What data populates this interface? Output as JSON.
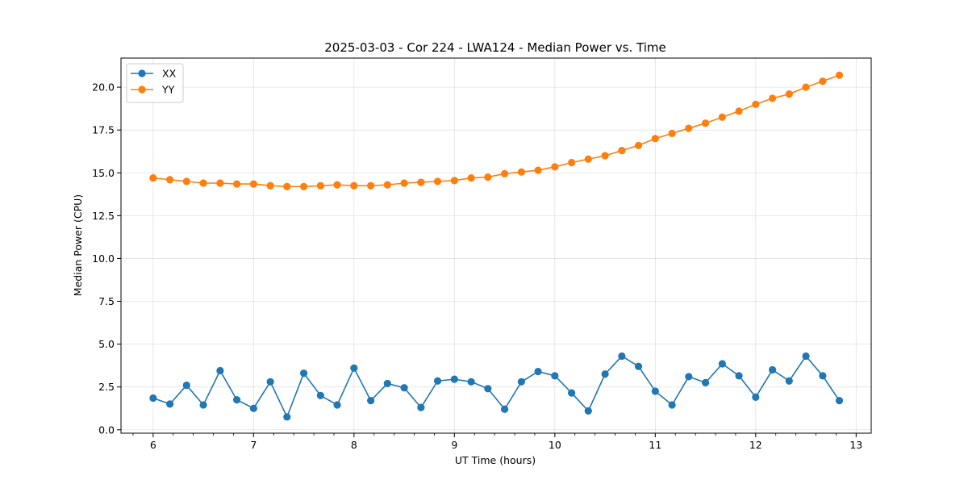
{
  "chart_data": {
    "type": "line",
    "title": "2025-03-03 - Cor 224 - LWA124 - Median Power vs. Time",
    "xlabel": "UT Time (hours)",
    "ylabel": "Median Power (CPU)",
    "xlim": [
      5.68,
      13.15
    ],
    "ylim": [
      -0.2,
      21.7
    ],
    "xticks": [
      6,
      7,
      8,
      9,
      10,
      11,
      12,
      13
    ],
    "xtick_labels": [
      "6",
      "7",
      "8",
      "9",
      "10",
      "11",
      "12",
      "13"
    ],
    "yticks": [
      0,
      2.5,
      5,
      7.5,
      10,
      12.5,
      15,
      17.5,
      20
    ],
    "ytick_labels": [
      "0.0",
      "2.5",
      "5.0",
      "7.5",
      "10.0",
      "12.5",
      "15.0",
      "17.5",
      "20.0"
    ],
    "grid": true,
    "legend_position": "top-left",
    "colors": {
      "XX": "#1f77b4",
      "YY": "#ff7f0e"
    },
    "x": [
      6.0,
      6.167,
      6.333,
      6.5,
      6.667,
      6.833,
      7.0,
      7.167,
      7.333,
      7.5,
      7.667,
      7.833,
      8.0,
      8.167,
      8.333,
      8.5,
      8.667,
      8.833,
      9.0,
      9.167,
      9.333,
      9.5,
      9.667,
      9.833,
      10.0,
      10.167,
      10.333,
      10.5,
      10.667,
      10.833,
      11.0,
      11.167,
      11.333,
      11.5,
      11.667,
      11.833,
      12.0,
      12.167,
      12.333,
      12.5,
      12.667,
      12.833
    ],
    "series": [
      {
        "name": "XX",
        "values": [
          1.85,
          1.5,
          2.6,
          1.45,
          3.45,
          1.75,
          1.25,
          2.8,
          0.75,
          3.3,
          2.0,
          1.45,
          3.6,
          1.7,
          2.7,
          2.45,
          1.3,
          2.85,
          2.95,
          2.8,
          2.4,
          1.2,
          2.8,
          3.4,
          3.15,
          2.15,
          1.1,
          3.25,
          4.3,
          3.7,
          2.25,
          1.45,
          3.1,
          2.75,
          3.85,
          3.15,
          1.9,
          3.5,
          2.85,
          4.3,
          3.15,
          1.7
        ]
      },
      {
        "name": "YY",
        "values": [
          14.7,
          14.6,
          14.5,
          14.4,
          14.4,
          14.35,
          14.35,
          14.25,
          14.2,
          14.2,
          14.25,
          14.3,
          14.25,
          14.25,
          14.3,
          14.4,
          14.45,
          14.5,
          14.55,
          14.7,
          14.75,
          14.95,
          15.05,
          15.15,
          15.35,
          15.6,
          15.8,
          16.0,
          16.3,
          16.6,
          17.0,
          17.3,
          17.6,
          17.9,
          18.25,
          18.6,
          19.0,
          19.35,
          19.6,
          20.0,
          20.35,
          20.7
        ]
      }
    ]
  }
}
